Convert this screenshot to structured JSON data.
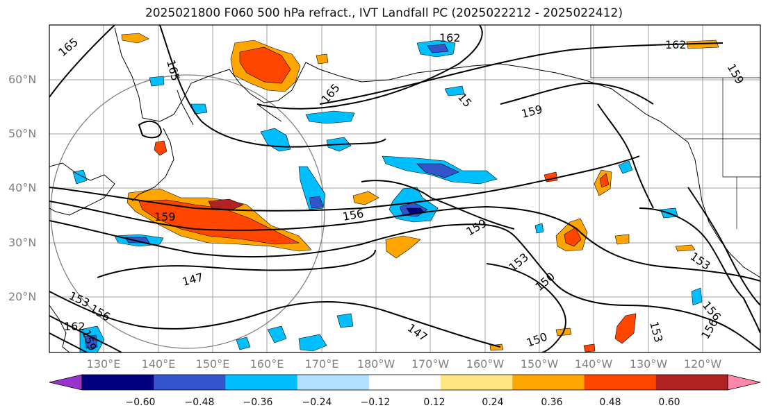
{
  "title": "2025021800 F060 500 hPa refract., IVT Landfall PC (2025022212 - 2025022412)",
  "lat_labels": [
    "60°N",
    "50°N",
    "40°N",
    "30°N",
    "20°N"
  ],
  "lon_labels": [
    "130°E",
    "140°E",
    "150°E",
    "160°E",
    "170°E",
    "180°W",
    "170°W",
    "160°W",
    "150°W",
    "140°W",
    "130°W",
    "120°W"
  ],
  "contour_labels": [
    "165",
    "165",
    "165",
    "162",
    "162",
    "159",
    "159",
    "159",
    "159",
    "159",
    "156",
    "156",
    "156",
    "156",
    "153",
    "153",
    "153",
    "153",
    "150",
    "150",
    "147",
    "147",
    "162",
    "15"
  ],
  "colorbar": {
    "ticks": [
      "−0.60",
      "−0.48",
      "−0.36",
      "−0.24",
      "−0.12",
      "0.12",
      "0.24",
      "0.36",
      "0.48",
      "0.60"
    ],
    "colors": [
      "#9933cc",
      "#000080",
      "#3355cc",
      "#00bfff",
      "#b0e0ff",
      "#ffffff",
      "#ffe680",
      "#ffa500",
      "#ff4500",
      "#b22222",
      "#ff88aa"
    ]
  },
  "colors": {
    "gridline": "#a0a0a0",
    "contour": "#000000",
    "coast": "#000000",
    "label": "#808080"
  }
}
